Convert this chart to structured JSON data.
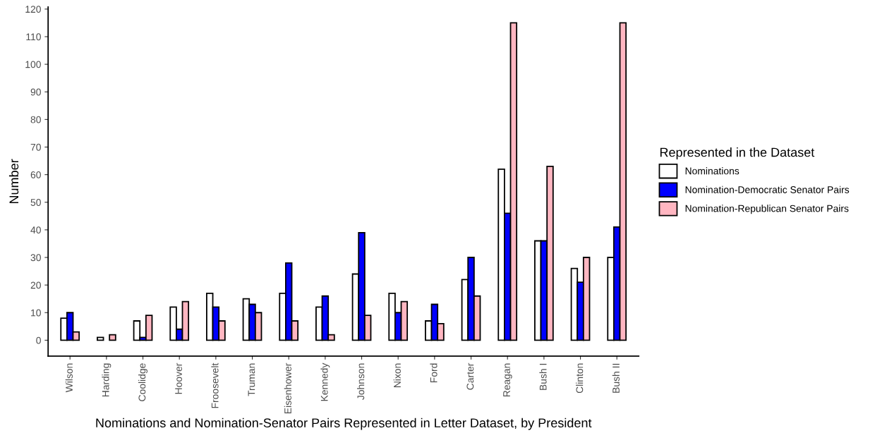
{
  "chart_data": {
    "type": "bar",
    "xlabel": "Nominations and Nomination-Senator Pairs Represented in Letter Dataset, by President",
    "ylabel": "Number",
    "legend_title": "Represented in the Dataset",
    "categories": [
      "Wilson",
      "Harding",
      "Coolidge",
      "Hoover",
      "Froosevelt",
      "Truman",
      "Eisenhower",
      "Kennedy",
      "Johnson",
      "Nixon",
      "Ford",
      "Carter",
      "Reagan",
      "Bush I",
      "Clinton",
      "Bush II"
    ],
    "series": [
      {
        "name": "Nominations",
        "color": "#ffffff",
        "values": [
          8,
          1,
          7,
          12,
          17,
          15,
          17,
          12,
          24,
          17,
          7,
          22,
          62,
          36,
          26,
          30
        ]
      },
      {
        "name": "Nomination-Democratic Senator Pairs",
        "color": "#0000ff",
        "values": [
          10,
          0,
          1,
          4,
          12,
          13,
          28,
          16,
          39,
          10,
          13,
          30,
          46,
          36,
          21,
          41
        ]
      },
      {
        "name": "Nomination-Republican Senator Pairs",
        "color": "#ffb6c1",
        "values": [
          3,
          2,
          9,
          14,
          7,
          10,
          7,
          2,
          9,
          14,
          6,
          16,
          115,
          63,
          30,
          115
        ]
      }
    ],
    "ylim": [
      -5.75,
      120.75
    ],
    "yticks": [
      0,
      10,
      20,
      30,
      40,
      50,
      60,
      70,
      80,
      90,
      100,
      110,
      120
    ],
    "grid": false,
    "legend": "right"
  }
}
